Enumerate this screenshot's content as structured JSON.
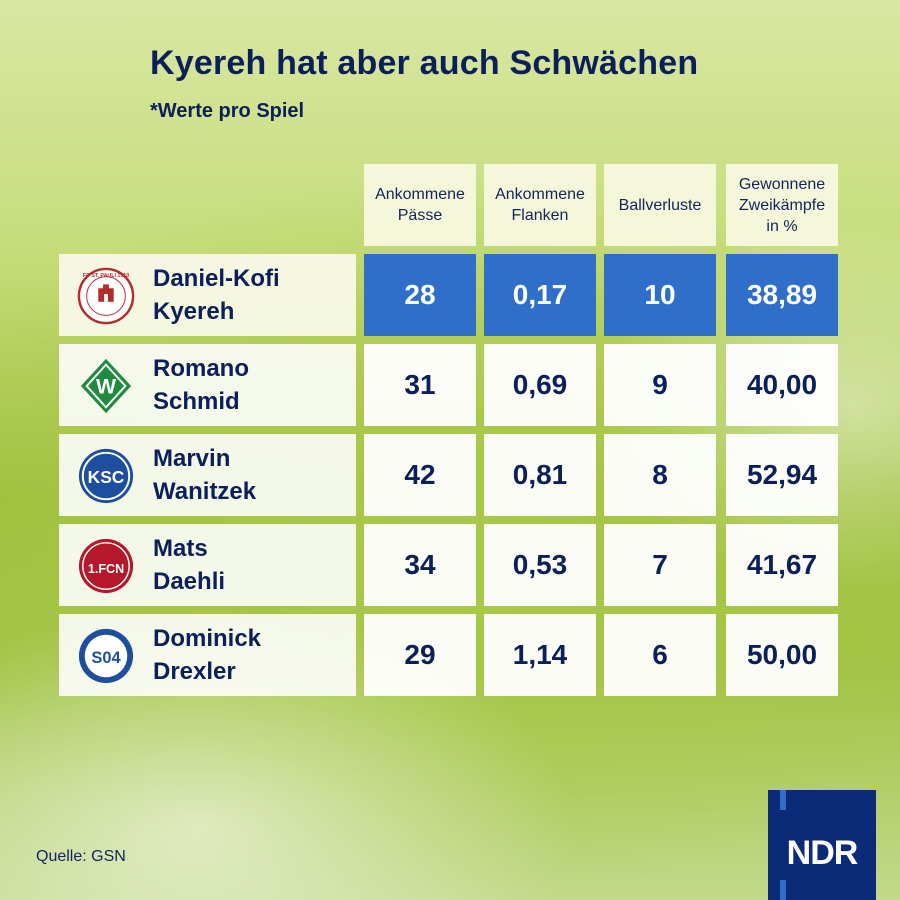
{
  "title": "Kyereh hat aber auch Schwächen",
  "subtitle": "*Werte pro Spiel",
  "source": "Quelle: GSN",
  "brand": "NDR",
  "colors": {
    "navy": "#0b1f5a",
    "highlight": "#2f6fca",
    "brand_bg": "#0b2a78"
  },
  "chart_data": {
    "type": "table",
    "columns": [
      "Ankommene\nPässe",
      "Ankommene\nFlanken",
      "Ballverluste",
      "Gewonnene\nZweikämpfe\nin %"
    ],
    "rows": [
      {
        "name": "Daniel-Kofi\nKyereh",
        "logo": "fc-st-pauli-logo",
        "logo_text": "FC ST. PAULI 1910",
        "values": [
          "28",
          "0,17",
          "10",
          "38,89"
        ],
        "highlighted": true
      },
      {
        "name": "Romano\nSchmid",
        "logo": "werder-bremen-logo",
        "logo_text": "W",
        "values": [
          "31",
          "0,69",
          "9",
          "40,00"
        ],
        "highlighted": false
      },
      {
        "name": "Marvin\nWanitzek",
        "logo": "ksc-logo",
        "logo_text": "KSC",
        "values": [
          "42",
          "0,81",
          "8",
          "52,94"
        ],
        "highlighted": false
      },
      {
        "name": "Mats\nDaehli",
        "logo": "fc-nuernberg-logo",
        "logo_text": "1.FCN",
        "values": [
          "34",
          "0,53",
          "7",
          "41,67"
        ],
        "highlighted": false
      },
      {
        "name": "Dominick\nDrexler",
        "logo": "schalke-04-logo",
        "logo_text": "S04",
        "values": [
          "29",
          "1,14",
          "6",
          "50,00"
        ],
        "highlighted": false
      }
    ]
  }
}
